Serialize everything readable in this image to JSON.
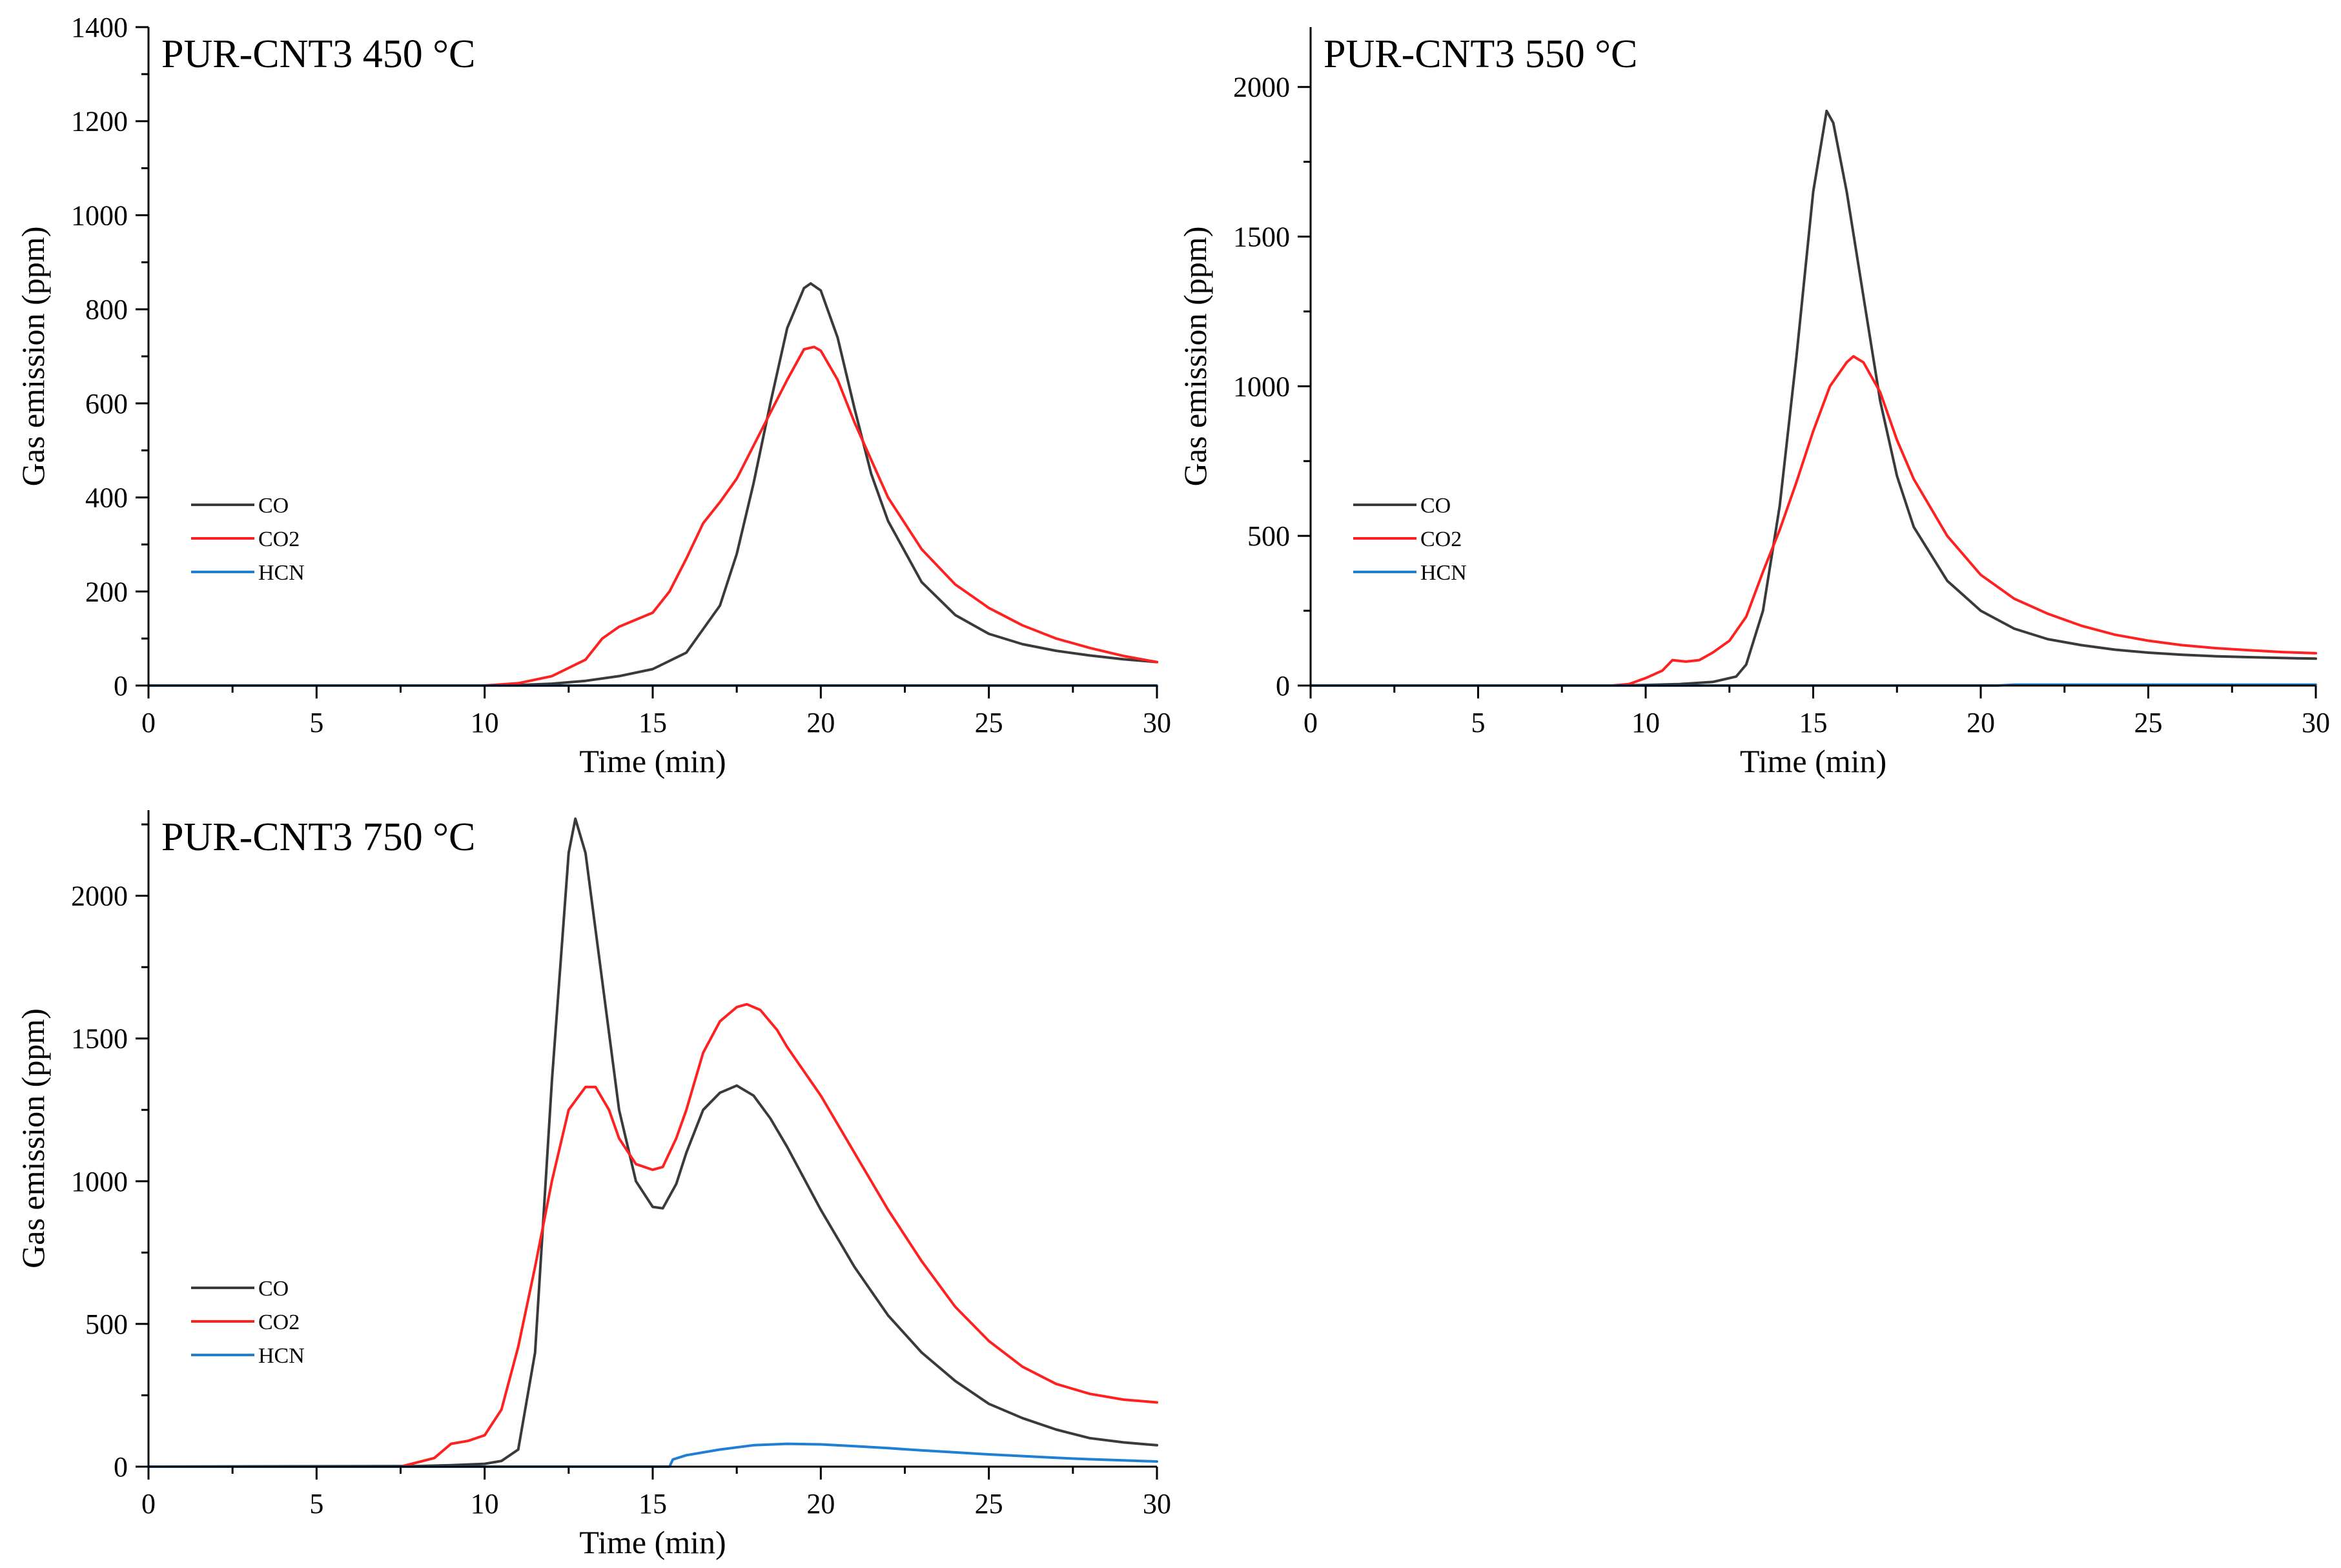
{
  "colors": {
    "CO": "#3a3a3a",
    "CO2": "#ff2020",
    "HCN": "#1f7fd4"
  },
  "chart_data": [
    {
      "type": "line",
      "title": "PUR-CNT3 450 °C",
      "xlabel": "Time (min)",
      "ylabel": "Gas emission (ppm)",
      "xlim": [
        0,
        30
      ],
      "ylim": [
        0,
        1400
      ],
      "xticks": [
        0,
        5,
        10,
        15,
        20,
        25,
        30
      ],
      "yticks": [
        0,
        200,
        400,
        600,
        800,
        1000,
        1200,
        1400
      ],
      "legend": [
        "CO",
        "CO2",
        "HCN"
      ],
      "legend_position": "middle-left",
      "series": [
        {
          "name": "CO",
          "points": [
            [
              0,
              0
            ],
            [
              10,
              0
            ],
            [
              11,
              1
            ],
            [
              12,
              4
            ],
            [
              13,
              10
            ],
            [
              14,
              20
            ],
            [
              15,
              35
            ],
            [
              16,
              70
            ],
            [
              17,
              170
            ],
            [
              17.5,
              280
            ],
            [
              18,
              430
            ],
            [
              18.5,
              600
            ],
            [
              19,
              760
            ],
            [
              19.5,
              845
            ],
            [
              19.7,
              855
            ],
            [
              20,
              840
            ],
            [
              20.5,
              740
            ],
            [
              21,
              590
            ],
            [
              21.5,
              450
            ],
            [
              22,
              350
            ],
            [
              23,
              220
            ],
            [
              24,
              150
            ],
            [
              25,
              110
            ],
            [
              26,
              88
            ],
            [
              27,
              74
            ],
            [
              28,
              64
            ],
            [
              29,
              56
            ],
            [
              30,
              50
            ]
          ]
        },
        {
          "name": "CO2",
          "points": [
            [
              0,
              0
            ],
            [
              10,
              0
            ],
            [
              11,
              5
            ],
            [
              12,
              20
            ],
            [
              13,
              55
            ],
            [
              13.5,
              100
            ],
            [
              14,
              125
            ],
            [
              15,
              155
            ],
            [
              15.5,
              200
            ],
            [
              16,
              270
            ],
            [
              16.5,
              345
            ],
            [
              17,
              390
            ],
            [
              17.5,
              440
            ],
            [
              18,
              510
            ],
            [
              18.5,
              580
            ],
            [
              19,
              650
            ],
            [
              19.5,
              715
            ],
            [
              19.8,
              720
            ],
            [
              20,
              712
            ],
            [
              20.5,
              650
            ],
            [
              21,
              560
            ],
            [
              21.5,
              480
            ],
            [
              22,
              400
            ],
            [
              23,
              290
            ],
            [
              24,
              215
            ],
            [
              25,
              165
            ],
            [
              26,
              128
            ],
            [
              27,
              100
            ],
            [
              28,
              80
            ],
            [
              29,
              63
            ],
            [
              30,
              50
            ]
          ]
        },
        {
          "name": "HCN",
          "points": [
            [
              0,
              0
            ],
            [
              30,
              0
            ]
          ]
        }
      ]
    },
    {
      "type": "line",
      "title": "PUR-CNT3 550 °C",
      "xlabel": "Time (min)",
      "ylabel": "Gas emission (ppm)",
      "xlim": [
        0,
        30
      ],
      "ylim": [
        0,
        2200
      ],
      "xticks": [
        0,
        5,
        10,
        15,
        20,
        25,
        30
      ],
      "yticks": [
        0,
        500,
        1000,
        1500,
        2000
      ],
      "legend": [
        "CO",
        "CO2",
        "HCN"
      ],
      "legend_position": "middle-left",
      "series": [
        {
          "name": "CO",
          "points": [
            [
              0,
              0
            ],
            [
              9,
              0
            ],
            [
              10,
              2
            ],
            [
              11,
              5
            ],
            [
              12,
              12
            ],
            [
              12.7,
              30
            ],
            [
              13,
              70
            ],
            [
              13.5,
              250
            ],
            [
              14,
              600
            ],
            [
              14.5,
              1100
            ],
            [
              15,
              1650
            ],
            [
              15.4,
              1920
            ],
            [
              15.6,
              1880
            ],
            [
              16,
              1650
            ],
            [
              16.5,
              1300
            ],
            [
              17,
              950
            ],
            [
              17.5,
              700
            ],
            [
              18,
              530
            ],
            [
              19,
              350
            ],
            [
              20,
              250
            ],
            [
              21,
              190
            ],
            [
              22,
              155
            ],
            [
              23,
              135
            ],
            [
              24,
              120
            ],
            [
              25,
              110
            ],
            [
              26,
              103
            ],
            [
              27,
              98
            ],
            [
              28,
              95
            ],
            [
              29,
              92
            ],
            [
              30,
              90
            ]
          ]
        },
        {
          "name": "CO2",
          "points": [
            [
              0,
              0
            ],
            [
              9,
              0
            ],
            [
              9.5,
              5
            ],
            [
              10,
              25
            ],
            [
              10.5,
              50
            ],
            [
              10.8,
              85
            ],
            [
              11.2,
              80
            ],
            [
              11.6,
              85
            ],
            [
              12,
              110
            ],
            [
              12.5,
              150
            ],
            [
              13,
              230
            ],
            [
              13.5,
              380
            ],
            [
              14,
              520
            ],
            [
              14.5,
              680
            ],
            [
              15,
              850
            ],
            [
              15.5,
              1000
            ],
            [
              16,
              1080
            ],
            [
              16.2,
              1100
            ],
            [
              16.5,
              1080
            ],
            [
              17,
              980
            ],
            [
              17.5,
              820
            ],
            [
              18,
              690
            ],
            [
              19,
              500
            ],
            [
              20,
              370
            ],
            [
              21,
              290
            ],
            [
              22,
              240
            ],
            [
              23,
              200
            ],
            [
              24,
              170
            ],
            [
              25,
              150
            ],
            [
              26,
              135
            ],
            [
              27,
              125
            ],
            [
              28,
              118
            ],
            [
              29,
              112
            ],
            [
              30,
              108
            ]
          ]
        },
        {
          "name": "HCN",
          "points": [
            [
              0,
              0
            ],
            [
              20.5,
              0
            ],
            [
              21,
              3
            ],
            [
              30,
              3
            ]
          ]
        }
      ]
    },
    {
      "type": "line",
      "title": "PUR-CNT3 750 °C",
      "xlabel": "Time (min)",
      "ylabel": "Gas emission (ppm)",
      "xlim": [
        0,
        30
      ],
      "ylim": [
        0,
        2300
      ],
      "xticks": [
        0,
        5,
        10,
        15,
        20,
        25,
        30
      ],
      "yticks": [
        0,
        500,
        1000,
        1500,
        2000
      ],
      "legend": [
        "CO",
        "CO2",
        "HCN"
      ],
      "legend_position": "middle-left",
      "series": [
        {
          "name": "CO",
          "points": [
            [
              0,
              0
            ],
            [
              8,
              2
            ],
            [
              9,
              5
            ],
            [
              10,
              10
            ],
            [
              10.5,
              20
            ],
            [
              11,
              60
            ],
            [
              11.5,
              400
            ],
            [
              12,
              1350
            ],
            [
              12.5,
              2150
            ],
            [
              12.7,
              2270
            ],
            [
              13,
              2150
            ],
            [
              13.5,
              1700
            ],
            [
              14,
              1250
            ],
            [
              14.5,
              1000
            ],
            [
              15,
              910
            ],
            [
              15.3,
              905
            ],
            [
              15.7,
              990
            ],
            [
              16,
              1100
            ],
            [
              16.5,
              1250
            ],
            [
              17,
              1310
            ],
            [
              17.5,
              1335
            ],
            [
              18,
              1300
            ],
            [
              18.5,
              1220
            ],
            [
              19,
              1120
            ],
            [
              20,
              900
            ],
            [
              21,
              700
            ],
            [
              22,
              530
            ],
            [
              23,
              400
            ],
            [
              24,
              300
            ],
            [
              25,
              220
            ],
            [
              26,
              170
            ],
            [
              27,
              130
            ],
            [
              28,
              100
            ],
            [
              29,
              85
            ],
            [
              30,
              75
            ]
          ]
        },
        {
          "name": "CO2",
          "points": [
            [
              0,
              0
            ],
            [
              7.5,
              0
            ],
            [
              8.5,
              30
            ],
            [
              9,
              80
            ],
            [
              9.5,
              90
            ],
            [
              10,
              110
            ],
            [
              10.5,
              200
            ],
            [
              11,
              420
            ],
            [
              11.5,
              700
            ],
            [
              12,
              1000
            ],
            [
              12.5,
              1250
            ],
            [
              13,
              1330
            ],
            [
              13.3,
              1330
            ],
            [
              13.7,
              1250
            ],
            [
              14,
              1150
            ],
            [
              14.5,
              1060
            ],
            [
              15,
              1040
            ],
            [
              15.3,
              1050
            ],
            [
              15.7,
              1150
            ],
            [
              16,
              1250
            ],
            [
              16.5,
              1450
            ],
            [
              17,
              1560
            ],
            [
              17.5,
              1610
            ],
            [
              17.8,
              1620
            ],
            [
              18.2,
              1600
            ],
            [
              18.7,
              1530
            ],
            [
              19,
              1470
            ],
            [
              20,
              1300
            ],
            [
              21,
              1100
            ],
            [
              22,
              900
            ],
            [
              23,
              720
            ],
            [
              24,
              560
            ],
            [
              25,
              440
            ],
            [
              26,
              350
            ],
            [
              27,
              290
            ],
            [
              28,
              255
            ],
            [
              29,
              235
            ],
            [
              30,
              225
            ]
          ]
        },
        {
          "name": "HCN",
          "points": [
            [
              0,
              0
            ],
            [
              15.5,
              0
            ],
            [
              15.6,
              25
            ],
            [
              16,
              40
            ],
            [
              17,
              60
            ],
            [
              18,
              75
            ],
            [
              19,
              80
            ],
            [
              20,
              78
            ],
            [
              21,
              72
            ],
            [
              22,
              65
            ],
            [
              23,
              57
            ],
            [
              24,
              50
            ],
            [
              25,
              43
            ],
            [
              26,
              37
            ],
            [
              27,
              31
            ],
            [
              28,
              26
            ],
            [
              29,
              22
            ],
            [
              30,
              18
            ]
          ]
        }
      ]
    }
  ]
}
